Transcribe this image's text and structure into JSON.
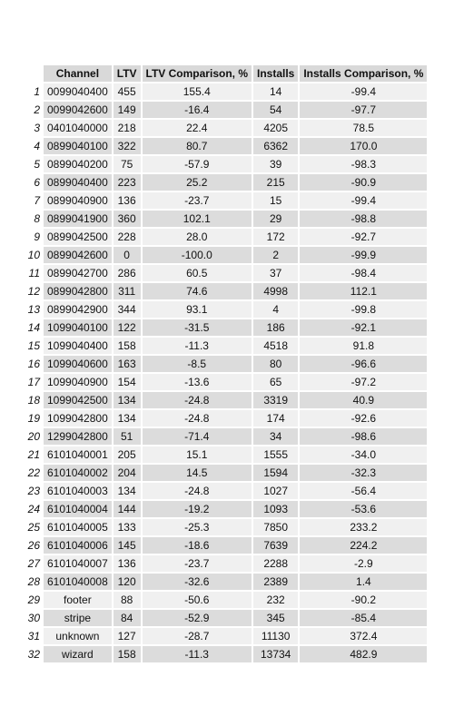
{
  "chart_data": {
    "type": "table",
    "columns": [
      "Channel",
      "LTV",
      "LTV Comparison, %",
      "Installs",
      "Installs Comparison, %"
    ],
    "rows": [
      {
        "index": "1",
        "cells": [
          "0099040400",
          "455",
          "155.4",
          "14",
          "-99.4"
        ]
      },
      {
        "index": "2",
        "cells": [
          "0099042600",
          "149",
          "-16.4",
          "54",
          "-97.7"
        ]
      },
      {
        "index": "3",
        "cells": [
          "0401040000",
          "218",
          "22.4",
          "4205",
          "78.5"
        ]
      },
      {
        "index": "4",
        "cells": [
          "0899040100",
          "322",
          "80.7",
          "6362",
          "170.0"
        ]
      },
      {
        "index": "5",
        "cells": [
          "0899040200",
          "75",
          "-57.9",
          "39",
          "-98.3"
        ]
      },
      {
        "index": "6",
        "cells": [
          "0899040400",
          "223",
          "25.2",
          "215",
          "-90.9"
        ]
      },
      {
        "index": "7",
        "cells": [
          "0899040900",
          "136",
          "-23.7",
          "15",
          "-99.4"
        ]
      },
      {
        "index": "8",
        "cells": [
          "0899041900",
          "360",
          "102.1",
          "29",
          "-98.8"
        ]
      },
      {
        "index": "9",
        "cells": [
          "0899042500",
          "228",
          "28.0",
          "172",
          "-92.7"
        ]
      },
      {
        "index": "10",
        "cells": [
          "0899042600",
          "0",
          "-100.0",
          "2",
          "-99.9"
        ]
      },
      {
        "index": "11",
        "cells": [
          "0899042700",
          "286",
          "60.5",
          "37",
          "-98.4"
        ]
      },
      {
        "index": "12",
        "cells": [
          "0899042800",
          "311",
          "74.6",
          "4998",
          "112.1"
        ]
      },
      {
        "index": "13",
        "cells": [
          "0899042900",
          "344",
          "93.1",
          "4",
          "-99.8"
        ]
      },
      {
        "index": "14",
        "cells": [
          "1099040100",
          "122",
          "-31.5",
          "186",
          "-92.1"
        ]
      },
      {
        "index": "15",
        "cells": [
          "1099040400",
          "158",
          "-11.3",
          "4518",
          "91.8"
        ]
      },
      {
        "index": "16",
        "cells": [
          "1099040600",
          "163",
          "-8.5",
          "80",
          "-96.6"
        ]
      },
      {
        "index": "17",
        "cells": [
          "1099040900",
          "154",
          "-13.6",
          "65",
          "-97.2"
        ]
      },
      {
        "index": "18",
        "cells": [
          "1099042500",
          "134",
          "-24.8",
          "3319",
          "40.9"
        ]
      },
      {
        "index": "19",
        "cells": [
          "1099042800",
          "134",
          "-24.8",
          "174",
          "-92.6"
        ]
      },
      {
        "index": "20",
        "cells": [
          "1299042800",
          "51",
          "-71.4",
          "34",
          "-98.6"
        ]
      },
      {
        "index": "21",
        "cells": [
          "6101040001",
          "205",
          "15.1",
          "1555",
          "-34.0"
        ]
      },
      {
        "index": "22",
        "cells": [
          "6101040002",
          "204",
          "14.5",
          "1594",
          "-32.3"
        ]
      },
      {
        "index": "23",
        "cells": [
          "6101040003",
          "134",
          "-24.8",
          "1027",
          "-56.4"
        ]
      },
      {
        "index": "24",
        "cells": [
          "6101040004",
          "144",
          "-19.2",
          "1093",
          "-53.6"
        ]
      },
      {
        "index": "25",
        "cells": [
          "6101040005",
          "133",
          "-25.3",
          "7850",
          "233.2"
        ]
      },
      {
        "index": "26",
        "cells": [
          "6101040006",
          "145",
          "-18.6",
          "7639",
          "224.2"
        ]
      },
      {
        "index": "27",
        "cells": [
          "6101040007",
          "136",
          "-23.7",
          "2288",
          "-2.9"
        ]
      },
      {
        "index": "28",
        "cells": [
          "6101040008",
          "120",
          "-32.6",
          "2389",
          "1.4"
        ]
      },
      {
        "index": "29",
        "cells": [
          "footer",
          "88",
          "-50.6",
          "232",
          "-90.2"
        ]
      },
      {
        "index": "30",
        "cells": [
          "stripe",
          "84",
          "-52.9",
          "345",
          "-85.4"
        ]
      },
      {
        "index": "31",
        "cells": [
          "unknown",
          "127",
          "-28.7",
          "11130",
          "372.4"
        ]
      },
      {
        "index": "32",
        "cells": [
          "wizard",
          "158",
          "-11.3",
          "13734",
          "482.9"
        ]
      }
    ]
  }
}
